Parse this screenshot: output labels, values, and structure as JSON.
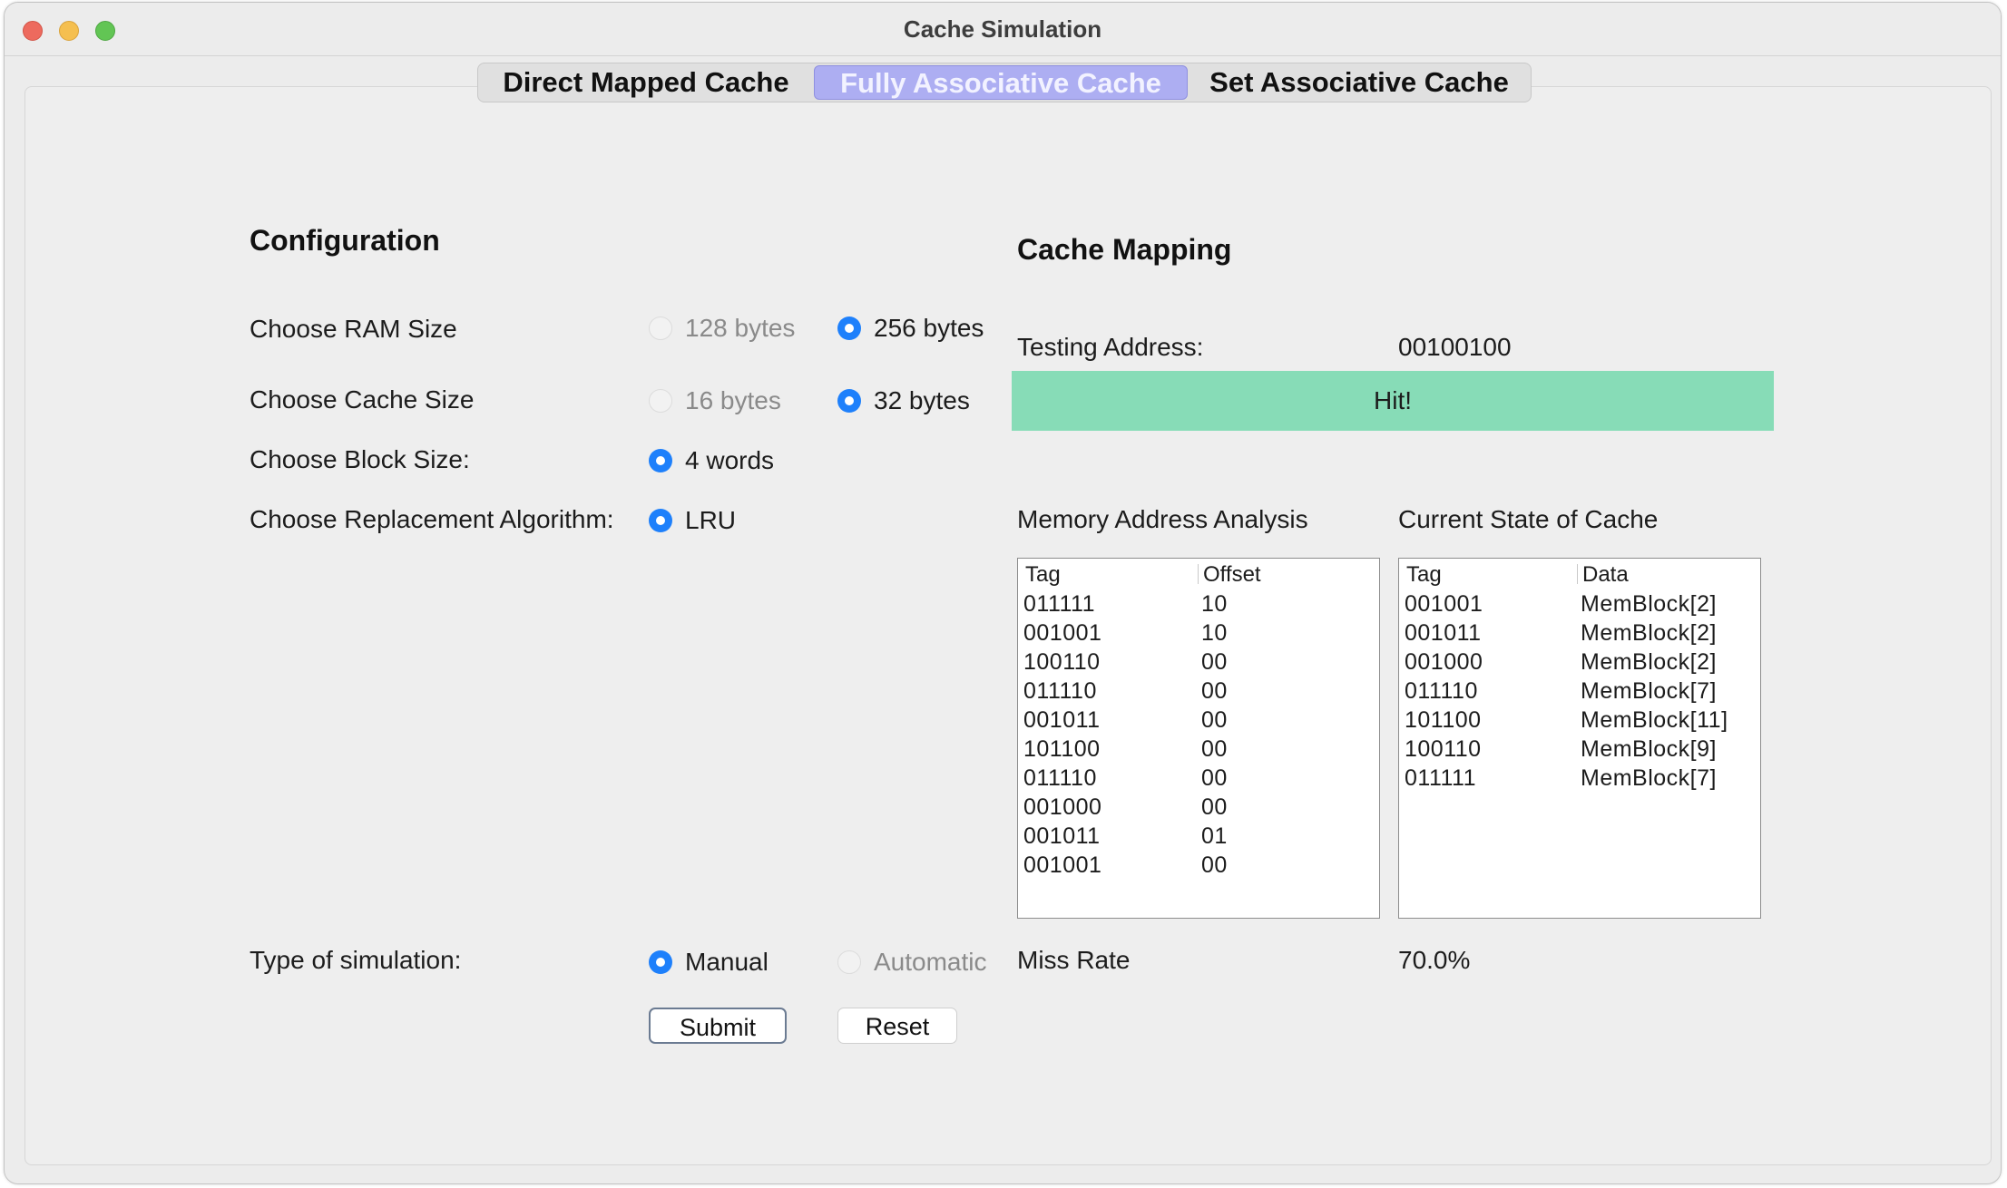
{
  "window": {
    "title": "Cache Simulation"
  },
  "tabs": [
    {
      "label": "Direct Mapped Cache",
      "selected": false
    },
    {
      "label": "Fully Associative Cache",
      "selected": true
    },
    {
      "label": "Set Associative Cache",
      "selected": false
    }
  ],
  "configuration": {
    "heading": "Configuration",
    "ram_size": {
      "label": "Choose RAM Size",
      "options": [
        "128 bytes",
        "256 bytes"
      ],
      "selected": "256 bytes"
    },
    "cache_size": {
      "label": "Choose Cache Size",
      "options": [
        "16 bytes",
        "32 bytes"
      ],
      "selected": "32 bytes"
    },
    "block_size": {
      "label": "Choose Block Size:",
      "options": [
        "4 words"
      ],
      "selected": "4 words"
    },
    "replacement": {
      "label": "Choose Replacement Algorithm:",
      "options": [
        "LRU"
      ],
      "selected": "LRU"
    },
    "simulation_type": {
      "label": "Type of simulation:",
      "options": [
        "Manual",
        "Automatic"
      ],
      "selected": "Manual"
    },
    "submit_label": "Submit",
    "reset_label": "Reset"
  },
  "cache_mapping": {
    "heading": "Cache Mapping",
    "testing_address_label": "Testing Address:",
    "testing_address_value": "00100100",
    "result": "Hit!",
    "result_color": "#87dcb7",
    "memory_analysis": {
      "title": "Memory Address Analysis",
      "columns": [
        "Tag",
        "Offset"
      ],
      "rows": [
        [
          "011111",
          "10"
        ],
        [
          "001001",
          "10"
        ],
        [
          "100110",
          "00"
        ],
        [
          "011110",
          "00"
        ],
        [
          "001011",
          "00"
        ],
        [
          "101100",
          "00"
        ],
        [
          "011110",
          "00"
        ],
        [
          "001000",
          "00"
        ],
        [
          "001011",
          "01"
        ],
        [
          "001001",
          "00"
        ]
      ]
    },
    "cache_state": {
      "title": "Current State of Cache",
      "columns": [
        "Tag",
        "Data"
      ],
      "rows": [
        [
          "001001",
          "MemBlock[2]"
        ],
        [
          "001011",
          "MemBlock[2]"
        ],
        [
          "001000",
          "MemBlock[2]"
        ],
        [
          "011110",
          "MemBlock[7]"
        ],
        [
          "101100",
          "MemBlock[11]"
        ],
        [
          "100110",
          "MemBlock[9]"
        ],
        [
          "011111",
          "MemBlock[7]"
        ]
      ]
    },
    "miss_rate_label": "Miss Rate",
    "miss_rate_value": "70.0%"
  },
  "colors": {
    "accent": "#1e80fb",
    "selected_tab": "#adaef2",
    "hit": "#87dcb7"
  }
}
